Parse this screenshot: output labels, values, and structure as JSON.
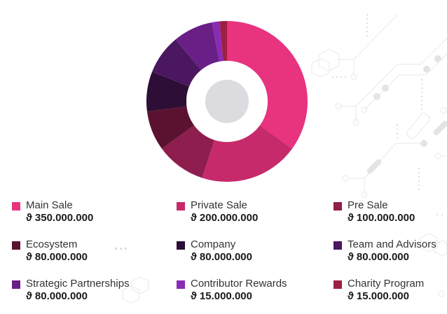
{
  "chart_data": {
    "type": "pie",
    "subtype": "donut",
    "title": "",
    "currency_symbol": "ϑ",
    "total": 1000000000,
    "categories": [
      "Main Sale",
      "Private Sale",
      "Pre Sale",
      "Ecosystem",
      "Company",
      "Team and Advisors",
      "Strategic Partnerships",
      "Contributor Rewards",
      "Charity Program"
    ],
    "values": [
      350000000,
      200000000,
      100000000,
      80000000,
      80000000,
      80000000,
      80000000,
      15000000,
      15000000
    ],
    "colors": [
      "#e8337f",
      "#c72a6b",
      "#8e1e4d",
      "#5a1230",
      "#2e0d36",
      "#4a1760",
      "#6a1f86",
      "#8a2bb5",
      "#9c1f45"
    ],
    "legend_position": "bottom",
    "grid": false
  },
  "legend": [
    {
      "label": "Main Sale",
      "value": "ϑ 350.000.000",
      "color": "#e8337f"
    },
    {
      "label": "Private Sale",
      "value": "ϑ 200.000.000",
      "color": "#c72a6b"
    },
    {
      "label": "Pre Sale",
      "value": "ϑ 100.000.000",
      "color": "#8e1e4d"
    },
    {
      "label": "Ecosystem",
      "value": "ϑ 80.000.000",
      "color": "#5a1230"
    },
    {
      "label": "Company",
      "value": "ϑ 80.000.000",
      "color": "#2e0d36"
    },
    {
      "label": "Team and Advisors",
      "value": "ϑ 80.000.000",
      "color": "#4a1760"
    },
    {
      "label": "Strategic Partnerships",
      "value": "ϑ 80.000.000",
      "color": "#6a1f86"
    },
    {
      "label": "Contributor Rewards",
      "value": "ϑ 15.000.000",
      "color": "#8a2bb5"
    },
    {
      "label": "Charity Program",
      "value": "ϑ 15.000.000",
      "color": "#9c1f45"
    }
  ]
}
